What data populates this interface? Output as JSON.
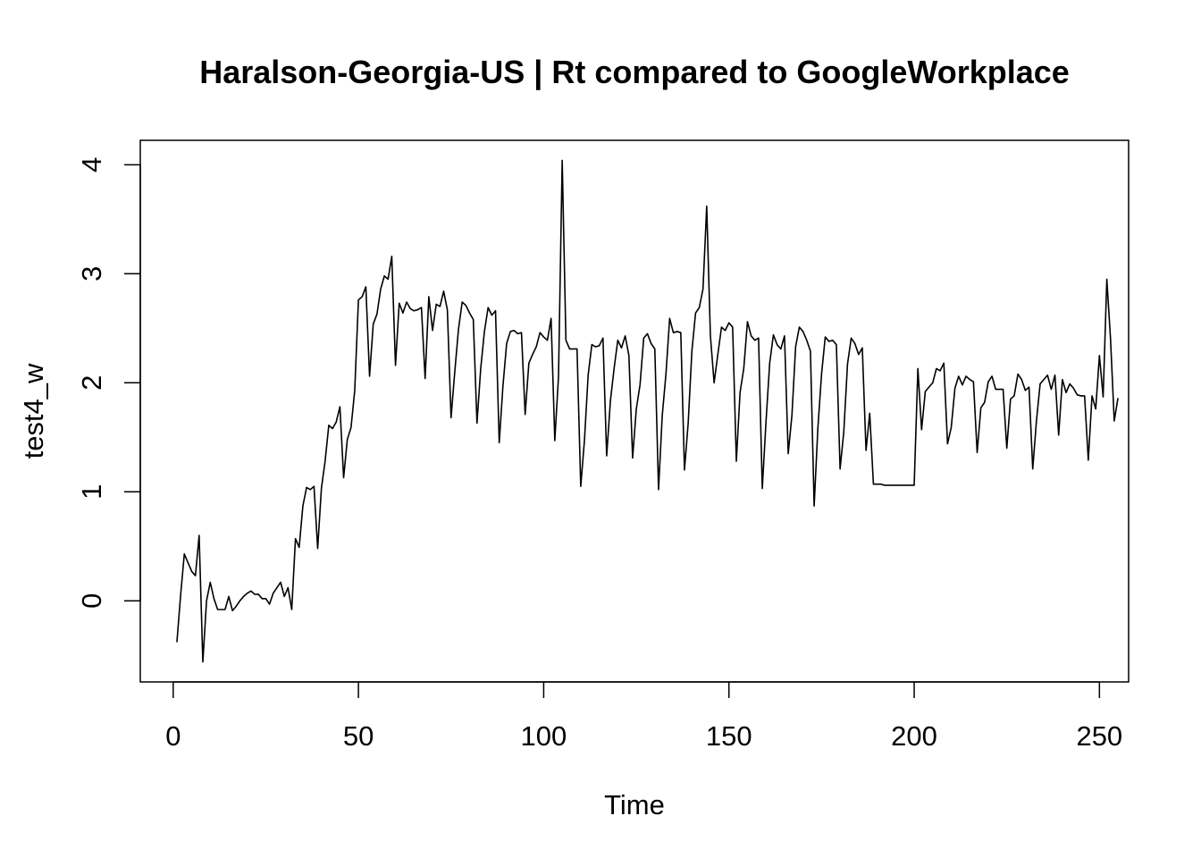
{
  "chart_data": {
    "type": "line",
    "title": "Haralson-Georgia-US | Rt compared to GoogleWorkplace",
    "xlabel": "Time",
    "ylabel": "test4_w",
    "xlim": [
      1,
      248
    ],
    "ylim": [
      -0.56,
      4.04
    ],
    "x_ticks": [
      0,
      50,
      100,
      150,
      200,
      250
    ],
    "y_ticks": [
      0,
      1,
      2,
      3,
      4
    ],
    "grid": false,
    "legend": "none",
    "line_color": "#000000",
    "series": [
      {
        "x_start": 1,
        "values": [
          -0.38,
          0.05,
          0.43,
          0.35,
          0.27,
          0.23,
          0.6,
          -0.56,
          0.0,
          0.17,
          0.02,
          -0.08,
          -0.08,
          -0.08,
          0.04,
          -0.09,
          -0.05,
          0.0,
          0.04,
          0.07,
          0.09,
          0.06,
          0.06,
          0.02,
          0.02,
          -0.03,
          0.07,
          0.12,
          0.17,
          0.04,
          0.12,
          -0.08,
          0.57,
          0.49,
          0.87,
          1.04,
          1.02,
          1.05,
          0.48,
          1.03,
          1.28,
          1.61,
          1.58,
          1.64,
          1.78,
          1.13,
          1.48,
          1.59,
          1.93,
          2.76,
          2.79,
          2.88,
          2.06,
          2.54,
          2.63,
          2.86,
          2.98,
          2.95,
          3.16,
          2.16,
          2.73,
          2.64,
          2.74,
          2.68,
          2.66,
          2.67,
          2.69,
          2.04,
          2.79,
          2.48,
          2.72,
          2.7,
          2.84,
          2.67,
          1.68,
          2.1,
          2.49,
          2.74,
          2.71,
          2.64,
          2.58,
          1.63,
          2.13,
          2.47,
          2.69,
          2.62,
          2.66,
          1.45,
          1.97,
          2.36,
          2.47,
          2.48,
          2.45,
          2.46,
          1.71,
          2.18,
          2.26,
          2.33,
          2.46,
          2.42,
          2.39,
          2.59,
          1.47,
          2.06,
          4.04,
          2.39,
          2.31,
          2.31,
          2.31,
          1.05,
          1.47,
          2.07,
          2.35,
          2.33,
          2.34,
          2.41,
          1.33,
          1.83,
          2.13,
          2.39,
          2.32,
          2.43,
          2.25,
          1.31,
          1.76,
          1.98,
          2.41,
          2.45,
          2.36,
          2.31,
          1.02,
          1.7,
          2.08,
          2.59,
          2.46,
          2.47,
          2.46,
          1.2,
          1.63,
          2.29,
          2.64,
          2.69,
          2.86,
          3.62,
          2.43,
          2.0,
          2.26,
          2.51,
          2.48,
          2.55,
          2.51,
          1.28,
          1.91,
          2.13,
          2.56,
          2.43,
          2.39,
          2.41,
          1.03,
          1.64,
          2.18,
          2.44,
          2.35,
          2.31,
          2.43,
          1.35,
          1.7,
          2.33,
          2.51,
          2.47,
          2.39,
          2.29,
          0.87,
          1.58,
          2.08,
          2.42,
          2.38,
          2.39,
          2.35,
          1.21,
          1.55,
          2.17,
          2.41,
          2.36,
          2.26,
          2.32,
          1.38,
          1.72,
          1.07,
          1.07,
          1.07,
          1.06,
          1.06,
          1.06,
          1.06,
          1.06,
          1.06,
          1.06,
          1.06,
          1.06,
          2.13,
          1.57,
          1.92,
          1.96,
          2.0,
          2.13,
          2.11,
          2.18,
          1.44,
          1.59,
          1.95,
          2.06,
          1.98,
          2.06,
          2.03,
          2.01,
          1.36,
          1.77,
          1.82,
          2.01,
          2.06,
          1.94,
          1.94,
          1.94,
          1.4,
          1.85,
          1.88,
          2.08,
          2.03,
          1.93,
          1.96,
          1.21,
          1.65,
          1.99,
          2.03,
          2.07,
          1.94,
          2.07,
          1.52,
          2.03,
          1.91,
          1.99,
          1.95,
          1.89,
          1.88,
          1.88,
          1.29,
          1.88,
          1.76,
          2.25,
          1.87,
          2.95,
          2.4,
          1.65,
          1.86
        ]
      }
    ]
  }
}
